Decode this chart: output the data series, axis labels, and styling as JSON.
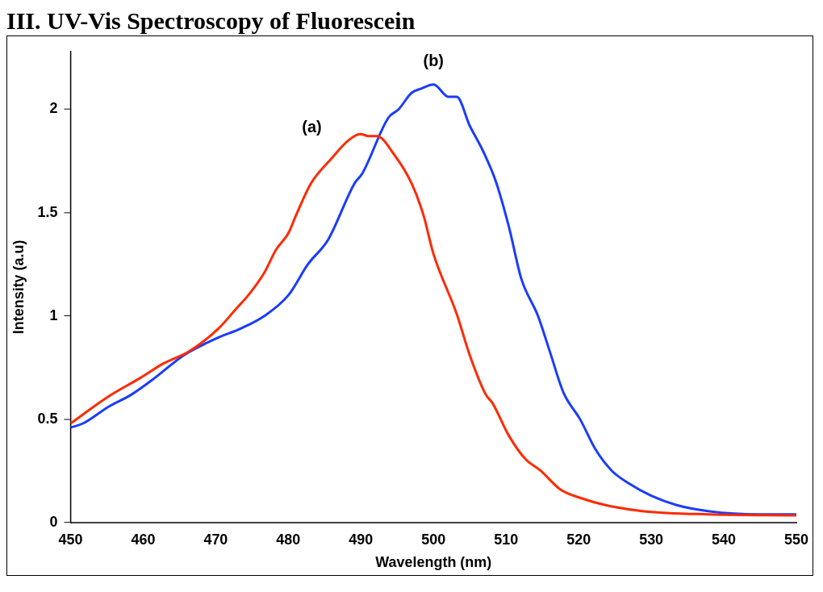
{
  "chart_data": {
    "type": "line",
    "title": "III. UV-Vis Spectroscopy of Fluorescein",
    "xlabel": "Wavelength (nm)",
    "ylabel": "Intensity (a.u)",
    "xlim": [
      450,
      550
    ],
    "xticks": [
      450,
      460,
      470,
      480,
      490,
      500,
      510,
      520,
      530,
      540,
      550
    ],
    "ylim": [
      0,
      2.28
    ],
    "yticks": [
      0,
      0.5,
      1,
      1.5,
      2
    ],
    "grid": false,
    "legend": false,
    "marker": "none",
    "line_style": "solid",
    "annotations": [
      "(a)",
      "(b)"
    ],
    "series": [
      {
        "color": "#ff2a00",
        "x": [
          450,
          455.2,
          459.6,
          462.8,
          466.4,
          470.4,
          472.7,
          474.7,
          476.7,
          478.3,
          480,
          481.1,
          483.1,
          485.9,
          488.3,
          489.9,
          491.1,
          492.2,
          494.6,
          497,
          498.6,
          500,
          503.2,
          505,
          507.2,
          508.1,
          510.4,
          512.6,
          514.8,
          517.5,
          520.2,
          523.7,
          529,
          537.9,
          550
        ],
        "values": [
          0.48,
          0.61,
          0.7,
          0.77,
          0.83,
          0.94,
          1.03,
          1.11,
          1.21,
          1.32,
          1.4,
          1.49,
          1.64,
          1.76,
          1.85,
          1.88,
          1.87,
          1.87,
          1.78,
          1.64,
          1.49,
          1.3,
          1.01,
          0.81,
          0.62,
          0.58,
          0.42,
          0.31,
          0.25,
          0.16,
          0.12,
          0.085,
          0.055,
          0.04,
          0.035
        ]
      },
      {
        "color": "#1a3cff",
        "x": [
          450,
          451.7,
          455.2,
          458.4,
          461.6,
          465.6,
          470,
          473.5,
          476.7,
          480,
          482.7,
          485.5,
          489.1,
          490.2,
          493.8,
          495.2,
          497,
          498.3,
          500,
          502.1,
          503.2,
          505,
          506.8,
          508.6,
          510.4,
          512.1,
          514.4,
          516.1,
          517.9,
          520.2,
          522.4,
          524.6,
          526.9,
          530,
          533.5,
          538,
          544.7,
          550
        ],
        "values": [
          0.46,
          0.48,
          0.56,
          0.62,
          0.7,
          0.81,
          0.89,
          0.94,
          1.0,
          1.1,
          1.25,
          1.37,
          1.64,
          1.69,
          1.96,
          2.0,
          2.08,
          2.1,
          2.12,
          2.06,
          2.06,
          1.92,
          1.8,
          1.65,
          1.43,
          1.18,
          1.0,
          0.82,
          0.63,
          0.5,
          0.35,
          0.25,
          0.19,
          0.13,
          0.085,
          0.055,
          0.04,
          0.04
        ]
      }
    ]
  }
}
